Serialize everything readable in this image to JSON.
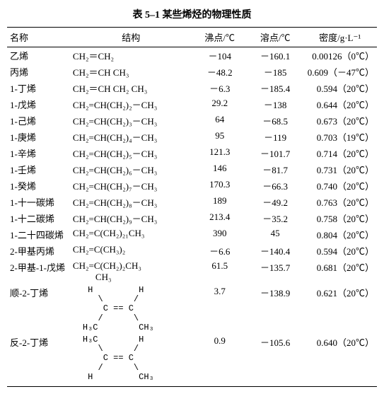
{
  "title": "表 5–1 某些烯烃的物理性质",
  "headers": {
    "name": "名称",
    "structure": "结构",
    "bp": "沸点/℃",
    "mp": "溶点/℃",
    "density": "密度/g·L⁻¹"
  },
  "rows": [
    {
      "name": "乙烯",
      "structure": "CH₂＝CH₂",
      "bp": "－104",
      "mp": "－160.1",
      "density": "0.00126（0℃）"
    },
    {
      "name": "丙烯",
      "structure": "CH₂＝CH CH₃",
      "bp": "－48.2",
      "mp": "－185",
      "density": "0.609（－47℃）"
    },
    {
      "name": "1-丁烯",
      "structure": "CH₂＝CH CH₂ CH₃",
      "bp": "－6.3",
      "mp": "－185.4",
      "density": "0.594（20℃）"
    },
    {
      "name": "1-戊烯",
      "structure": "CH₂=CH(CH₂)₂－CH₃",
      "bp": "29.2",
      "mp": "－138",
      "density": "0.644（20℃）"
    },
    {
      "name": "1-己烯",
      "structure": "CH₂=CH(CH₂)₃－CH₃",
      "bp": "64",
      "mp": "－68.5",
      "density": "0.673（20℃）"
    },
    {
      "name": "1-庚烯",
      "structure": "CH₂=CH(CH₂)₄－CH₃",
      "bp": "95",
      "mp": "－119",
      "density": "0.703（19℃）"
    },
    {
      "name": "1-辛烯",
      "structure": "CH₂=CH(CH₂)₅－CH₃",
      "bp": "121.3",
      "mp": "－101.7",
      "density": "0.714（20℃）"
    },
    {
      "name": "1-壬烯",
      "structure": "CH₂=CH(CH₂)₆－CH₃",
      "bp": "146",
      "mp": "－81.7",
      "density": "0.731（20℃）"
    },
    {
      "name": "1-癸烯",
      "structure": "CH₂=CH(CH₂)₇－CH₃",
      "bp": "170.3",
      "mp": "－66.3",
      "density": "0.740（20℃）"
    },
    {
      "name": "1-十一碳烯",
      "structure": "CH₂=CH(CH₂)₈－CH₃",
      "bp": "189",
      "mp": "－49.2",
      "density": "0.763（20℃）"
    },
    {
      "name": "1-十二碳烯",
      "structure": "CH₂=CH(CH₂)₉－CH₃",
      "bp": "213.4",
      "mp": "－35.2",
      "density": "0.758（20℃）"
    },
    {
      "name": "1-二十四碳烯",
      "structure": "CH₂=C(CH₂)₂₁CH₃",
      "bp": "390",
      "mp": "45",
      "density": "0.804（20℃）"
    },
    {
      "name": "2-甲基丙烯",
      "structure": "CH₂=C(CH₃)₂",
      "bp": "－6.6",
      "mp": "－140.4",
      "density": "0.594（20℃）"
    },
    {
      "name": "2-甲基-1-戊烯",
      "structure": "CH₂=C(CH₂)₂CH₃",
      "structure2": "CH₃",
      "bp": "61.5",
      "mp": "－135.7",
      "density": "0.681（20℃）"
    },
    {
      "name": "顺-2-丁烯",
      "diagram": " H         H\n   \\      /\n    C == C\n   /      \\\nH₃C        CH₃",
      "bp": "3.7",
      "mp": "－138.9",
      "density": "0.621（20℃）"
    },
    {
      "name": "反-2-丁烯",
      "diagram": "H₃C        H\n   \\      /\n    C == C\n   /      \\\n H         CH₃",
      "bp": "0.9",
      "mp": "－105.6",
      "density": "0.640（20℃）"
    }
  ]
}
